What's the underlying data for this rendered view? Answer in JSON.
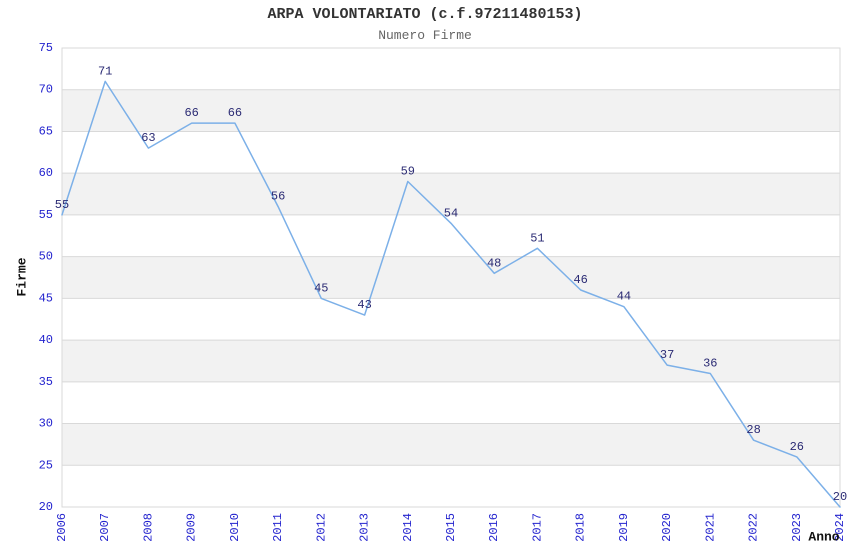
{
  "chart_data": {
    "type": "line",
    "title": "ARPA VOLONTARIATO (c.f.97211480153)",
    "subtitle": "Numero Firme",
    "xlabel": "Anno",
    "ylabel": "Firme",
    "categories": [
      "2006",
      "2007",
      "2008",
      "2009",
      "2010",
      "2011",
      "2012",
      "2013",
      "2014",
      "2015",
      "2016",
      "2017",
      "2018",
      "2019",
      "2020",
      "2021",
      "2022",
      "2023",
      "2024"
    ],
    "values": [
      55,
      71,
      63,
      66,
      66,
      56,
      45,
      43,
      59,
      54,
      48,
      51,
      46,
      44,
      37,
      36,
      28,
      26,
      20
    ],
    "ylim": [
      20,
      75
    ],
    "ytick_step": 5,
    "yticks": [
      20,
      25,
      30,
      35,
      40,
      45,
      50,
      55,
      60,
      65,
      70,
      75
    ],
    "grid": true,
    "band_pattern": "alternating-horizontal",
    "legend": "none",
    "data_labels_visible": true,
    "colors": {
      "line": "#7CB0E8",
      "data_label": "#2B2B74",
      "tick_label": "#2323CE",
      "title": "#333333",
      "subtitle": "#666666",
      "axis_title": "#111111",
      "grid_line": "#D9D9D9",
      "band": "#F2F2F2",
      "background": "#FFFFFF"
    }
  }
}
